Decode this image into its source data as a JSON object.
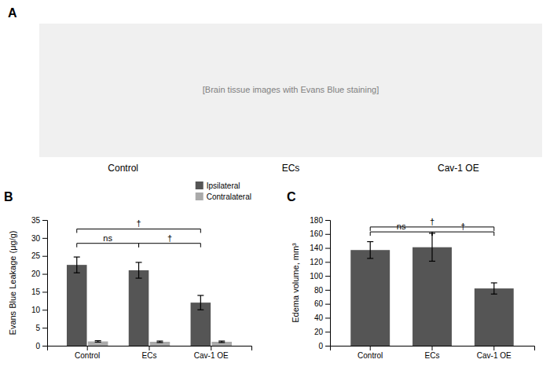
{
  "chart_data": [
    {
      "type": "image",
      "title": "A",
      "annotations": [
        {
          "text": "[Brain tissue images with Evans Blue staining]"
        }
      ],
      "categories": [
        "Control",
        "ECs",
        "Cav-1 OE"
      ]
    },
    {
      "type": "bar",
      "title": "B",
      "categories": [
        "Control",
        "ECs",
        "Cav-1 OE"
      ],
      "series": [
        {
          "name": "Ipsilateral",
          "color": "#555555",
          "values": [
            22.5,
            21.0,
            12.0
          ],
          "errors": [
            2.2,
            2.2,
            2.0
          ]
        },
        {
          "name": "Contralateral",
          "color": "#aaaaaa",
          "values": [
            1.2,
            1.1,
            1.1
          ],
          "errors": [
            0.2,
            0.2,
            0.2
          ]
        }
      ],
      "ylabel": "Evans Blue Leakage (μg/g)",
      "ylim": [
        0,
        35
      ],
      "yticks": [
        0,
        5,
        10,
        15,
        20,
        25,
        30,
        35
      ],
      "legend": "upper right",
      "annotations": [
        {
          "text": "†",
          "from": "Control",
          "to": "Cav-1 OE",
          "y": 32.5
        },
        {
          "text": "ns",
          "from": "Control",
          "to": "ECs",
          "y": 28.5
        },
        {
          "text": "†",
          "from": "ECs",
          "to": "Cav-1 OE",
          "y": 28.5
        }
      ]
    },
    {
      "type": "bar",
      "title": "C",
      "categories": [
        "Control",
        "ECs",
        "Cav-1 OE"
      ],
      "values": [
        137.0,
        141.0,
        82.0
      ],
      "errors": [
        12.0,
        20.0,
        8.0
      ],
      "color": "#555555",
      "ylabel": "Edema volume, mm³",
      "ylim": [
        0,
        180
      ],
      "yticks": [
        0,
        20,
        40,
        60,
        80,
        100,
        120,
        140,
        160,
        180
      ],
      "annotations": [
        {
          "text": "†",
          "from": "Control",
          "to": "Cav-1 OE",
          "y": 170
        },
        {
          "text": "ns",
          "from": "Control",
          "to": "ECs",
          "y": 163
        },
        {
          "text": "†",
          "from": "ECs",
          "to": "Cav-1 OE",
          "y": 163
        }
      ]
    }
  ]
}
